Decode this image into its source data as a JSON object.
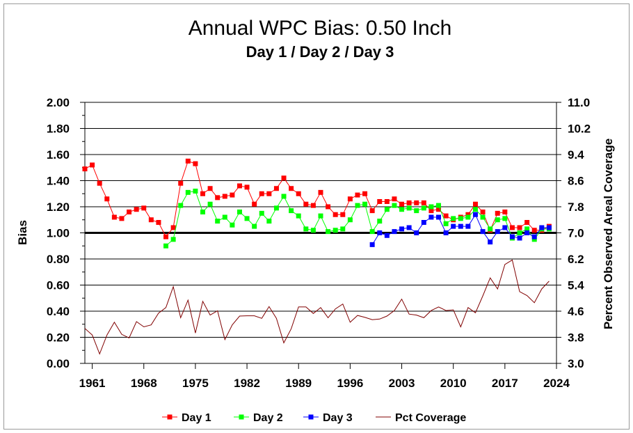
{
  "chart_data": {
    "type": "line",
    "title": "Annual WPC Bias:  0.50 Inch",
    "subtitle": "Day 1 / Day 2 / Day 3",
    "ylabel": "Bias",
    "y2label": "Percent Observed Areal Coverage",
    "xlim": [
      1960,
      2024
    ],
    "ylim": [
      0,
      2
    ],
    "y2lim": [
      3.0,
      11.0
    ],
    "x_ticks": [
      "1961",
      "1968",
      "1975",
      "1982",
      "1989",
      "1996",
      "2003",
      "2010",
      "2017",
      "2024"
    ],
    "y_ticks": [
      "0.00",
      "0.20",
      "0.40",
      "0.60",
      "0.80",
      "1.00",
      "1.20",
      "1.40",
      "1.60",
      "1.80",
      "2.00"
    ],
    "y2_ticks": [
      "3.0",
      "3.8",
      "4.6",
      "5.4",
      "6.2",
      "7.0",
      "7.8",
      "8.6",
      "9.4",
      "10.2",
      "11.0"
    ],
    "reference_line": 1.0,
    "grid": true,
    "legend_position": "bottom",
    "series": [
      {
        "name": "Day 1",
        "color": "#ff0000",
        "axis": "left",
        "marker": "square",
        "line": true,
        "x": [
          1960,
          1961,
          1962,
          1963,
          1964,
          1965,
          1966,
          1967,
          1968,
          1969,
          1970,
          1971,
          1972,
          1973,
          1974,
          1975,
          1976,
          1977,
          1978,
          1979,
          1980,
          1981,
          1982,
          1983,
          1984,
          1985,
          1986,
          1987,
          1988,
          1989,
          1990,
          1991,
          1992,
          1993,
          1994,
          1995,
          1996,
          1997,
          1998,
          1999,
          2000,
          2001,
          2002,
          2003,
          2004,
          2005,
          2006,
          2007,
          2008,
          2009,
          2010,
          2011,
          2012,
          2013,
          2014,
          2015,
          2016,
          2017,
          2018,
          2019,
          2020,
          2021,
          2022,
          2023
        ],
        "values": [
          1.49,
          1.52,
          1.38,
          1.26,
          1.12,
          1.11,
          1.16,
          1.18,
          1.19,
          1.1,
          1.08,
          0.97,
          1.04,
          1.38,
          1.55,
          1.53,
          1.3,
          1.34,
          1.27,
          1.28,
          1.29,
          1.36,
          1.35,
          1.22,
          1.3,
          1.3,
          1.34,
          1.42,
          1.34,
          1.3,
          1.22,
          1.21,
          1.31,
          1.2,
          1.14,
          1.14,
          1.26,
          1.29,
          1.3,
          1.17,
          1.24,
          1.24,
          1.26,
          1.22,
          1.23,
          1.23,
          1.23,
          1.17,
          1.18,
          1.13,
          1.1,
          1.12,
          1.14,
          1.22,
          1.16,
          1.02,
          1.15,
          1.16,
          1.04,
          1.04,
          1.08,
          1.02,
          1.02,
          1.05
        ]
      },
      {
        "name": "Day 2",
        "color": "#00ff00",
        "axis": "left",
        "marker": "square",
        "line": true,
        "x": [
          1971,
          1972,
          1973,
          1974,
          1975,
          1976,
          1977,
          1978,
          1979,
          1980,
          1981,
          1982,
          1983,
          1984,
          1985,
          1986,
          1987,
          1988,
          1989,
          1990,
          1991,
          1992,
          1993,
          1994,
          1995,
          1996,
          1997,
          1998,
          1999,
          2000,
          2001,
          2002,
          2003,
          2004,
          2005,
          2006,
          2007,
          2008,
          2009,
          2010,
          2011,
          2012,
          2013,
          2014,
          2015,
          2016,
          2017,
          2018,
          2019,
          2020,
          2021,
          2022,
          2023
        ],
        "values": [
          0.9,
          0.95,
          1.21,
          1.31,
          1.32,
          1.16,
          1.22,
          1.09,
          1.12,
          1.06,
          1.16,
          1.11,
          1.05,
          1.15,
          1.09,
          1.19,
          1.28,
          1.17,
          1.13,
          1.03,
          1.02,
          1.13,
          1.01,
          1.02,
          1.03,
          1.1,
          1.21,
          1.22,
          1.01,
          1.09,
          1.18,
          1.21,
          1.18,
          1.19,
          1.17,
          1.19,
          1.2,
          1.21,
          1.07,
          1.11,
          1.11,
          1.12,
          1.18,
          1.12,
          1.03,
          1.1,
          1.11,
          0.96,
          1.0,
          1.03,
          0.95,
          1.03,
          1.03
        ]
      },
      {
        "name": "Day 3",
        "color": "#0000ff",
        "axis": "left",
        "marker": "square",
        "line": true,
        "x": [
          1999,
          2000,
          2001,
          2002,
          2003,
          2004,
          2005,
          2006,
          2007,
          2008,
          2009,
          2010,
          2011,
          2012,
          2013,
          2014,
          2015,
          2016,
          2017,
          2018,
          2019,
          2020,
          2021,
          2022,
          2023
        ],
        "values": [
          0.91,
          1.0,
          0.98,
          1.01,
          1.03,
          1.04,
          1.0,
          1.08,
          1.12,
          1.12,
          1.0,
          1.05,
          1.05,
          1.05,
          1.14,
          1.01,
          0.93,
          1.01,
          1.04,
          0.97,
          0.96,
          1.0,
          0.97,
          1.04,
          1.04
        ]
      },
      {
        "name": "Pct Coverage",
        "color": "#800000",
        "axis": "right",
        "marker": "none",
        "line": true,
        "x": [
          1960,
          1961,
          1962,
          1963,
          1964,
          1965,
          1966,
          1967,
          1968,
          1969,
          1970,
          1971,
          1972,
          1973,
          1974,
          1975,
          1976,
          1977,
          1978,
          1979,
          1980,
          1981,
          1982,
          1983,
          1984,
          1985,
          1986,
          1987,
          1988,
          1989,
          1990,
          1991,
          1992,
          1993,
          1994,
          1995,
          1996,
          1997,
          1998,
          1999,
          2000,
          2001,
          2002,
          2003,
          2004,
          2005,
          2006,
          2007,
          2008,
          2009,
          2010,
          2011,
          2012,
          2013,
          2014,
          2015,
          2016,
          2017,
          2018,
          2019,
          2020,
          2021,
          2022,
          2023
        ],
        "values": [
          4.07,
          3.87,
          3.29,
          3.87,
          4.26,
          3.89,
          3.78,
          4.28,
          4.12,
          4.18,
          4.54,
          4.71,
          5.35,
          4.4,
          4.94,
          3.93,
          4.9,
          4.48,
          4.61,
          3.73,
          4.18,
          4.45,
          4.46,
          4.46,
          4.38,
          4.74,
          4.38,
          3.63,
          4.06,
          4.73,
          4.73,
          4.53,
          4.71,
          4.4,
          4.67,
          4.82,
          4.26,
          4.47,
          4.41,
          4.34,
          4.36,
          4.45,
          4.62,
          4.97,
          4.51,
          4.48,
          4.4,
          4.62,
          4.73,
          4.62,
          4.64,
          4.12,
          4.71,
          4.55,
          5.07,
          5.62,
          5.28,
          6.03,
          6.17,
          5.2,
          5.08,
          4.86,
          5.28,
          5.52
        ]
      }
    ]
  }
}
